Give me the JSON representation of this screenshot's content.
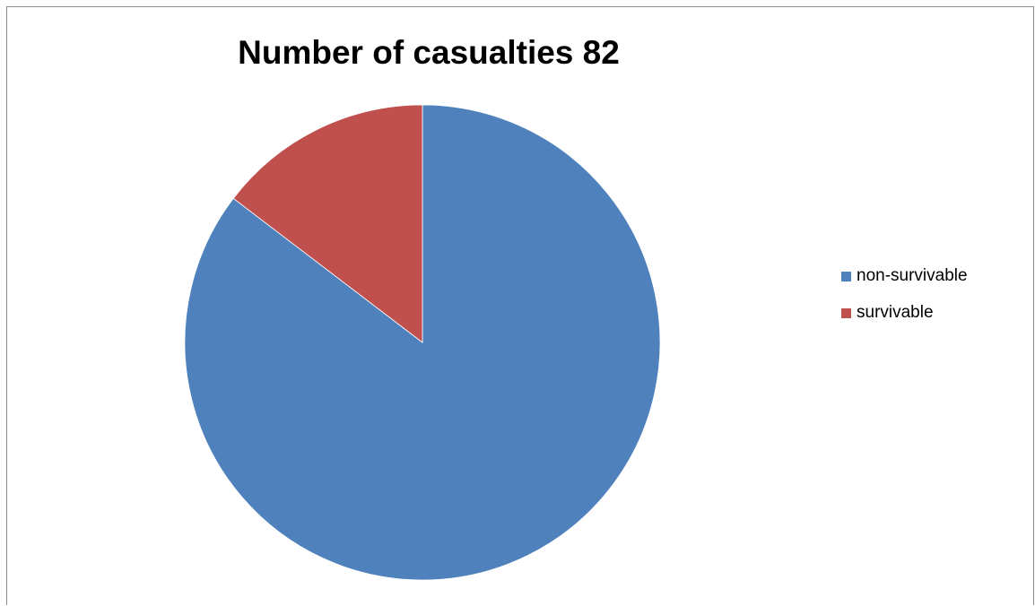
{
  "chart_data": {
    "type": "pie",
    "title": "Number of casualties 82",
    "categories": [
      "non-survivable",
      "survivable"
    ],
    "values": [
      70,
      12
    ],
    "colors": [
      "#4f81bd",
      "#c0504d"
    ],
    "start_angle": "12 o'clock",
    "direction": "clockwise",
    "legend_position": "right",
    "data_labels": false
  }
}
